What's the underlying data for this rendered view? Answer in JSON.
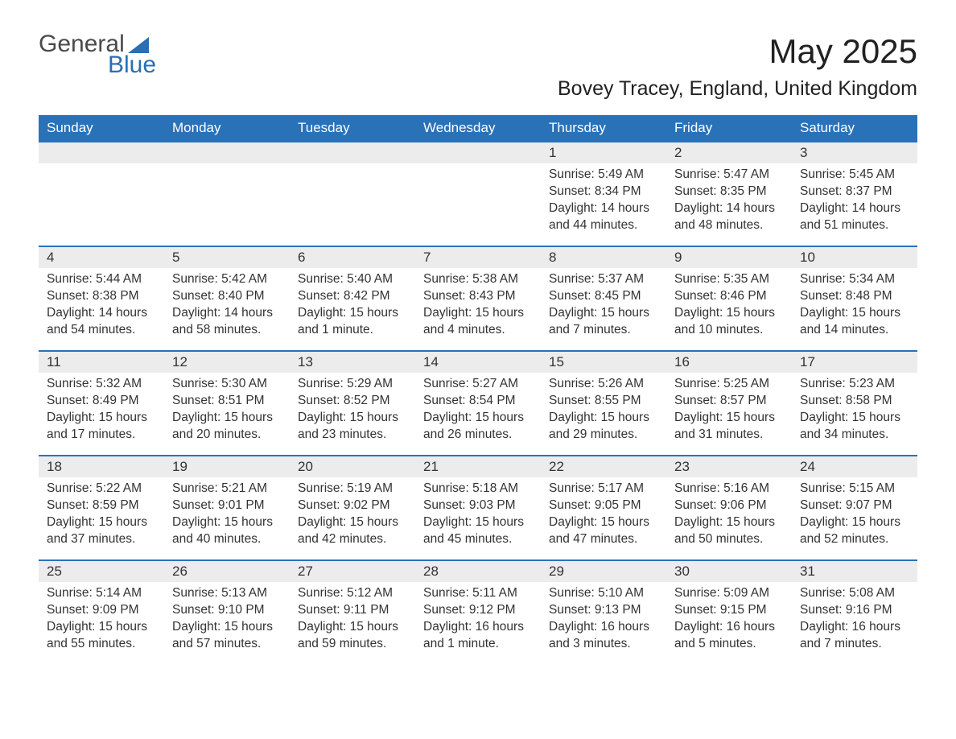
{
  "brand": {
    "word1": "General",
    "word2": "Blue",
    "accent_color": "#2a6eb4"
  },
  "title": "May 2025",
  "location": "Bovey Tracey, England, United Kingdom",
  "colors": {
    "header_bg": "#2a72b8",
    "header_text": "#ffffff",
    "daynum_bg": "#ececec",
    "rule": "#2a72b8",
    "body_text": "#333333",
    "page_bg": "#ffffff"
  },
  "typography": {
    "title_fontsize": 42,
    "location_fontsize": 25,
    "header_fontsize": 17,
    "daynum_fontsize": 17,
    "body_fontsize": 15.5
  },
  "days_of_week": [
    "Sunday",
    "Monday",
    "Tuesday",
    "Wednesday",
    "Thursday",
    "Friday",
    "Saturday"
  ],
  "weeks": [
    [
      null,
      null,
      null,
      null,
      {
        "n": "1",
        "sunrise": "5:49 AM",
        "sunset": "8:34 PM",
        "daylight": "14 hours and 44 minutes."
      },
      {
        "n": "2",
        "sunrise": "5:47 AM",
        "sunset": "8:35 PM",
        "daylight": "14 hours and 48 minutes."
      },
      {
        "n": "3",
        "sunrise": "5:45 AM",
        "sunset": "8:37 PM",
        "daylight": "14 hours and 51 minutes."
      }
    ],
    [
      {
        "n": "4",
        "sunrise": "5:44 AM",
        "sunset": "8:38 PM",
        "daylight": "14 hours and 54 minutes."
      },
      {
        "n": "5",
        "sunrise": "5:42 AM",
        "sunset": "8:40 PM",
        "daylight": "14 hours and 58 minutes."
      },
      {
        "n": "6",
        "sunrise": "5:40 AM",
        "sunset": "8:42 PM",
        "daylight": "15 hours and 1 minute."
      },
      {
        "n": "7",
        "sunrise": "5:38 AM",
        "sunset": "8:43 PM",
        "daylight": "15 hours and 4 minutes."
      },
      {
        "n": "8",
        "sunrise": "5:37 AM",
        "sunset": "8:45 PM",
        "daylight": "15 hours and 7 minutes."
      },
      {
        "n": "9",
        "sunrise": "5:35 AM",
        "sunset": "8:46 PM",
        "daylight": "15 hours and 10 minutes."
      },
      {
        "n": "10",
        "sunrise": "5:34 AM",
        "sunset": "8:48 PM",
        "daylight": "15 hours and 14 minutes."
      }
    ],
    [
      {
        "n": "11",
        "sunrise": "5:32 AM",
        "sunset": "8:49 PM",
        "daylight": "15 hours and 17 minutes."
      },
      {
        "n": "12",
        "sunrise": "5:30 AM",
        "sunset": "8:51 PM",
        "daylight": "15 hours and 20 minutes."
      },
      {
        "n": "13",
        "sunrise": "5:29 AM",
        "sunset": "8:52 PM",
        "daylight": "15 hours and 23 minutes."
      },
      {
        "n": "14",
        "sunrise": "5:27 AM",
        "sunset": "8:54 PM",
        "daylight": "15 hours and 26 minutes."
      },
      {
        "n": "15",
        "sunrise": "5:26 AM",
        "sunset": "8:55 PM",
        "daylight": "15 hours and 29 minutes."
      },
      {
        "n": "16",
        "sunrise": "5:25 AM",
        "sunset": "8:57 PM",
        "daylight": "15 hours and 31 minutes."
      },
      {
        "n": "17",
        "sunrise": "5:23 AM",
        "sunset": "8:58 PM",
        "daylight": "15 hours and 34 minutes."
      }
    ],
    [
      {
        "n": "18",
        "sunrise": "5:22 AM",
        "sunset": "8:59 PM",
        "daylight": "15 hours and 37 minutes."
      },
      {
        "n": "19",
        "sunrise": "5:21 AM",
        "sunset": "9:01 PM",
        "daylight": "15 hours and 40 minutes."
      },
      {
        "n": "20",
        "sunrise": "5:19 AM",
        "sunset": "9:02 PM",
        "daylight": "15 hours and 42 minutes."
      },
      {
        "n": "21",
        "sunrise": "5:18 AM",
        "sunset": "9:03 PM",
        "daylight": "15 hours and 45 minutes."
      },
      {
        "n": "22",
        "sunrise": "5:17 AM",
        "sunset": "9:05 PM",
        "daylight": "15 hours and 47 minutes."
      },
      {
        "n": "23",
        "sunrise": "5:16 AM",
        "sunset": "9:06 PM",
        "daylight": "15 hours and 50 minutes."
      },
      {
        "n": "24",
        "sunrise": "5:15 AM",
        "sunset": "9:07 PM",
        "daylight": "15 hours and 52 minutes."
      }
    ],
    [
      {
        "n": "25",
        "sunrise": "5:14 AM",
        "sunset": "9:09 PM",
        "daylight": "15 hours and 55 minutes."
      },
      {
        "n": "26",
        "sunrise": "5:13 AM",
        "sunset": "9:10 PM",
        "daylight": "15 hours and 57 minutes."
      },
      {
        "n": "27",
        "sunrise": "5:12 AM",
        "sunset": "9:11 PM",
        "daylight": "15 hours and 59 minutes."
      },
      {
        "n": "28",
        "sunrise": "5:11 AM",
        "sunset": "9:12 PM",
        "daylight": "16 hours and 1 minute."
      },
      {
        "n": "29",
        "sunrise": "5:10 AM",
        "sunset": "9:13 PM",
        "daylight": "16 hours and 3 minutes."
      },
      {
        "n": "30",
        "sunrise": "5:09 AM",
        "sunset": "9:15 PM",
        "daylight": "16 hours and 5 minutes."
      },
      {
        "n": "31",
        "sunrise": "5:08 AM",
        "sunset": "9:16 PM",
        "daylight": "16 hours and 7 minutes."
      }
    ]
  ],
  "labels": {
    "sunrise": "Sunrise: ",
    "sunset": "Sunset: ",
    "daylight": "Daylight: "
  }
}
